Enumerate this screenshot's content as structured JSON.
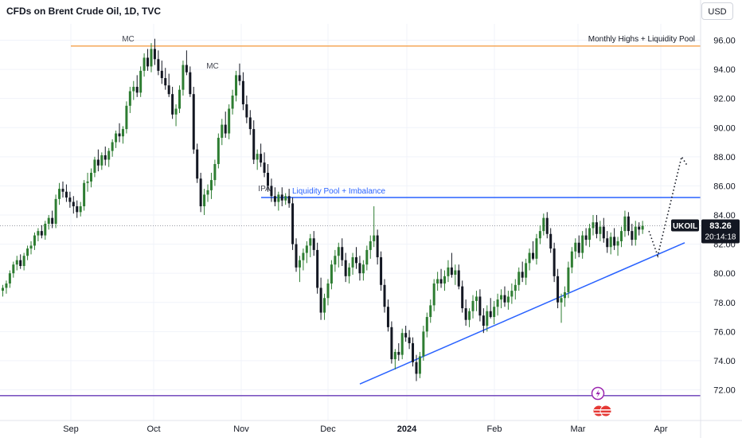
{
  "header": {
    "title": "CFDs on Brent Crude Oil, 1D, TVC",
    "currency_button": "USD"
  },
  "price_tag": {
    "symbol": "UKOIL",
    "price": "83.26",
    "countdown": "20:14:18"
  },
  "colors": {
    "up": "#2e7d32",
    "down": "#131722",
    "orange_line": "#f5a04a",
    "blue_line": "#2962ff",
    "purple_line": "#673ab7",
    "trendline": "#2962ff"
  },
  "chart_data": {
    "type": "candlestick",
    "instrument": "CFDs on Brent Crude Oil",
    "interval": "1D",
    "source": "TVC",
    "currency": "USD",
    "ylim": [
      71.2,
      97.6
    ],
    "y_ticks": [
      "96.00",
      "94.00",
      "92.00",
      "90.00",
      "88.00",
      "86.00",
      "84.00",
      "82.00",
      "80.00",
      "78.00",
      "76.00",
      "74.00",
      "72.00"
    ],
    "x_ticks": [
      {
        "label": "Sep",
        "bold": false
      },
      {
        "label": "Oct",
        "bold": false
      },
      {
        "label": "Nov",
        "bold": false
      },
      {
        "label": "Dec",
        "bold": false
      },
      {
        "label": "2024",
        "bold": true
      },
      {
        "label": "Feb",
        "bold": false
      },
      {
        "label": "Mar",
        "bold": false
      },
      {
        "label": "Apr",
        "bold": false
      }
    ],
    "last_price": 83.26,
    "horizontal_lines": [
      {
        "label": "Monthly Highs + Liquidity Pool",
        "y": 95.6,
        "color": "#f5a04a"
      },
      {
        "label": "Liquidity Pool + Imbalance",
        "y": 85.2,
        "color": "#2962ff"
      },
      {
        "label": "",
        "y": 71.6,
        "color": "#673ab7"
      }
    ],
    "annotations": [
      {
        "text": "MC",
        "near": "September high"
      },
      {
        "text": "MC",
        "near": "October high"
      },
      {
        "text": "IPA",
        "near": "start of November"
      }
    ],
    "trendline": {
      "from": {
        "date": "mid-December",
        "y": 72.4
      },
      "to": {
        "date": "early April",
        "y": 82.1
      }
    },
    "projection": {
      "style": "dotted",
      "points": [
        82.9,
        81.2,
        88.0
      ]
    },
    "candles": [
      [
        78.8,
        79.2,
        78.4,
        79.0
      ],
      [
        79.0,
        79.5,
        78.6,
        79.3
      ],
      [
        79.3,
        80.2,
        79.0,
        80.0
      ],
      [
        80.0,
        80.8,
        79.7,
        80.6
      ],
      [
        80.6,
        81.2,
        80.2,
        80.9
      ],
      [
        80.9,
        81.3,
        80.3,
        80.5
      ],
      [
        80.5,
        81.4,
        80.2,
        81.2
      ],
      [
        81.2,
        81.9,
        80.9,
        81.7
      ],
      [
        81.7,
        82.2,
        81.3,
        81.9
      ],
      [
        81.9,
        82.8,
        81.6,
        82.6
      ],
      [
        82.6,
        83.1,
        82.2,
        82.9
      ],
      [
        82.9,
        83.3,
        82.4,
        82.6
      ],
      [
        82.6,
        83.6,
        82.3,
        83.4
      ],
      [
        83.4,
        84.0,
        83.0,
        83.8
      ],
      [
        83.8,
        84.3,
        83.1,
        83.4
      ],
      [
        83.4,
        85.4,
        83.1,
        85.1
      ],
      [
        85.1,
        86.2,
        84.7,
        85.8
      ],
      [
        85.8,
        86.3,
        85.2,
        85.6
      ],
      [
        85.6,
        86.1,
        84.9,
        85.2
      ],
      [
        85.2,
        85.6,
        84.5,
        84.9
      ],
      [
        84.9,
        85.3,
        84.1,
        84.6
      ],
      [
        84.6,
        85.0,
        83.8,
        84.2
      ],
      [
        84.2,
        84.9,
        83.9,
        84.6
      ],
      [
        84.6,
        86.4,
        84.3,
        86.2
      ],
      [
        86.2,
        86.9,
        85.6,
        86.3
      ],
      [
        86.3,
        87.2,
        85.9,
        86.9
      ],
      [
        86.9,
        88.0,
        86.6,
        87.8
      ],
      [
        87.8,
        88.5,
        87.0,
        87.4
      ],
      [
        87.4,
        88.3,
        87.1,
        88.1
      ],
      [
        88.1,
        88.7,
        87.4,
        87.8
      ],
      [
        87.8,
        88.6,
        87.3,
        88.4
      ],
      [
        88.4,
        89.2,
        88.0,
        89.0
      ],
      [
        89.0,
        89.8,
        88.6,
        89.6
      ],
      [
        89.6,
        90.3,
        89.0,
        89.4
      ],
      [
        89.4,
        90.1,
        88.9,
        89.9
      ],
      [
        89.9,
        91.8,
        89.6,
        91.5
      ],
      [
        91.5,
        92.8,
        91.0,
        92.5
      ],
      [
        92.5,
        93.2,
        91.9,
        92.8
      ],
      [
        92.8,
        93.6,
        92.1,
        92.4
      ],
      [
        92.4,
        94.2,
        92.1,
        93.9
      ],
      [
        93.9,
        95.1,
        93.5,
        94.8
      ],
      [
        94.8,
        95.4,
        93.9,
        94.2
      ],
      [
        94.2,
        95.8,
        93.8,
        95.4
      ],
      [
        95.4,
        96.1,
        94.3,
        94.7
      ],
      [
        94.7,
        95.3,
        93.6,
        93.9
      ],
      [
        93.9,
        94.6,
        93.0,
        93.4
      ],
      [
        93.4,
        94.1,
        92.6,
        92.9
      ],
      [
        92.9,
        93.7,
        92.1,
        92.3
      ],
      [
        92.3,
        92.8,
        90.6,
        90.9
      ],
      [
        90.9,
        91.6,
        90.1,
        91.3
      ],
      [
        91.3,
        92.9,
        91.0,
        92.6
      ],
      [
        92.6,
        94.6,
        92.2,
        94.3
      ],
      [
        94.3,
        95.3,
        93.6,
        93.8
      ],
      [
        93.8,
        94.2,
        92.1,
        92.3
      ],
      [
        92.3,
        92.8,
        88.2,
        88.5
      ],
      [
        88.5,
        88.9,
        86.2,
        86.5
      ],
      [
        86.5,
        86.9,
        84.2,
        84.6
      ],
      [
        84.6,
        85.8,
        84.0,
        85.4
      ],
      [
        85.4,
        86.1,
        84.9,
        85.7
      ],
      [
        85.7,
        86.9,
        85.1,
        86.4
      ],
      [
        86.4,
        87.8,
        86.0,
        87.5
      ],
      [
        87.5,
        89.6,
        87.2,
        89.3
      ],
      [
        89.3,
        90.6,
        88.8,
        90.2
      ],
      [
        90.2,
        91.1,
        89.3,
        89.6
      ],
      [
        89.6,
        91.6,
        89.2,
        91.3
      ],
      [
        91.3,
        92.6,
        90.9,
        92.2
      ],
      [
        92.2,
        93.9,
        91.8,
        93.6
      ],
      [
        93.6,
        94.4,
        92.9,
        93.2
      ],
      [
        93.2,
        93.8,
        91.2,
        91.6
      ],
      [
        91.6,
        92.2,
        90.3,
        90.7
      ],
      [
        90.7,
        91.2,
        89.5,
        89.9
      ],
      [
        89.9,
        90.5,
        87.5,
        87.8
      ],
      [
        87.8,
        88.5,
        87.1,
        88.2
      ],
      [
        88.2,
        88.9,
        87.3,
        87.6
      ],
      [
        87.6,
        88.3,
        86.6,
        86.9
      ],
      [
        86.9,
        87.5,
        85.6,
        86.0
      ],
      [
        86.0,
        86.5,
        84.9,
        85.3
      ],
      [
        85.3,
        85.9,
        84.6,
        84.9
      ],
      [
        84.9,
        85.6,
        84.3,
        85.4
      ],
      [
        85.4,
        85.9,
        84.6,
        85.0
      ],
      [
        85.0,
        85.5,
        84.7,
        85.3
      ],
      [
        85.3,
        85.8,
        84.5,
        84.8
      ],
      [
        84.8,
        85.2,
        81.6,
        82.0
      ],
      [
        82.0,
        82.4,
        80.1,
        80.4
      ],
      [
        80.4,
        81.2,
        79.4,
        80.9
      ],
      [
        80.9,
        81.7,
        80.2,
        81.4
      ],
      [
        81.4,
        82.2,
        80.7,
        81.9
      ],
      [
        81.9,
        82.7,
        81.1,
        82.4
      ],
      [
        82.4,
        82.9,
        81.2,
        81.6
      ],
      [
        81.6,
        82.1,
        78.6,
        79.0
      ],
      [
        79.0,
        79.7,
        76.8,
        77.3
      ],
      [
        77.3,
        78.6,
        76.8,
        78.3
      ],
      [
        78.3,
        79.6,
        77.8,
        79.3
      ],
      [
        79.3,
        80.9,
        78.9,
        80.6
      ],
      [
        80.6,
        81.6,
        80.1,
        81.2
      ],
      [
        81.2,
        82.1,
        80.4,
        81.8
      ],
      [
        81.8,
        82.4,
        80.5,
        80.9
      ],
      [
        80.9,
        81.4,
        79.4,
        79.8
      ],
      [
        79.8,
        80.7,
        79.3,
        80.4
      ],
      [
        80.4,
        81.4,
        79.9,
        81.1
      ],
      [
        81.1,
        81.8,
        80.3,
        80.7
      ],
      [
        80.7,
        81.2,
        79.5,
        80.0
      ],
      [
        80.0,
        80.9,
        79.5,
        80.6
      ],
      [
        80.6,
        81.9,
        80.2,
        81.6
      ],
      [
        81.6,
        82.6,
        81.0,
        82.2
      ],
      [
        82.2,
        84.6,
        81.8,
        82.6
      ],
      [
        82.6,
        83.0,
        80.6,
        81.1
      ],
      [
        81.1,
        81.5,
        78.8,
        79.2
      ],
      [
        79.2,
        79.6,
        77.3,
        77.7
      ],
      [
        77.7,
        78.2,
        76.0,
        76.3
      ],
      [
        76.3,
        76.7,
        73.8,
        74.1
      ],
      [
        74.1,
        74.8,
        73.4,
        74.6
      ],
      [
        74.6,
        75.2,
        74.0,
        74.4
      ],
      [
        74.4,
        76.2,
        74.1,
        75.9
      ],
      [
        75.9,
        76.4,
        75.3,
        75.6
      ],
      [
        75.6,
        76.1,
        74.8,
        75.2
      ],
      [
        75.2,
        75.6,
        73.6,
        73.9
      ],
      [
        73.9,
        74.4,
        72.6,
        73.1
      ],
      [
        73.1,
        74.6,
        72.8,
        74.3
      ],
      [
        74.3,
        76.4,
        74.0,
        76.0
      ],
      [
        76.0,
        77.3,
        75.6,
        77.0
      ],
      [
        77.0,
        78.2,
        76.6,
        77.8
      ],
      [
        77.8,
        79.6,
        77.4,
        79.3
      ],
      [
        79.3,
        80.1,
        78.8,
        79.6
      ],
      [
        79.6,
        80.3,
        79.0,
        79.3
      ],
      [
        79.3,
        80.2,
        78.8,
        79.8
      ],
      [
        79.8,
        80.9,
        79.4,
        80.4
      ],
      [
        80.4,
        81.4,
        79.7,
        79.9
      ],
      [
        79.9,
        80.6,
        79.2,
        80.2
      ],
      [
        80.2,
        80.6,
        78.9,
        79.1
      ],
      [
        79.1,
        79.5,
        77.3,
        77.6
      ],
      [
        77.6,
        78.2,
        76.4,
        76.8
      ],
      [
        76.8,
        77.6,
        76.3,
        77.4
      ],
      [
        77.4,
        78.5,
        76.9,
        78.1
      ],
      [
        78.1,
        78.8,
        77.4,
        78.4
      ],
      [
        78.4,
        78.9,
        76.7,
        77.1
      ],
      [
        77.1,
        77.6,
        75.9,
        76.4
      ],
      [
        76.4,
        77.8,
        76.0,
        77.4
      ],
      [
        77.4,
        78.3,
        76.9,
        77.0
      ],
      [
        77.0,
        78.1,
        76.5,
        77.7
      ],
      [
        77.7,
        78.6,
        77.1,
        78.2
      ],
      [
        78.2,
        78.9,
        77.6,
        78.5
      ],
      [
        78.5,
        79.1,
        77.7,
        78.0
      ],
      [
        78.0,
        78.8,
        77.5,
        78.4
      ],
      [
        78.4,
        79.3,
        77.9,
        78.8
      ],
      [
        78.8,
        79.6,
        78.2,
        79.2
      ],
      [
        79.2,
        80.4,
        78.8,
        80.1
      ],
      [
        80.1,
        80.8,
        79.4,
        79.7
      ],
      [
        79.7,
        81.0,
        79.2,
        80.7
      ],
      [
        80.7,
        81.7,
        80.2,
        81.4
      ],
      [
        81.4,
        82.2,
        80.9,
        81.0
      ],
      [
        81.0,
        82.7,
        80.6,
        82.4
      ],
      [
        82.4,
        83.3,
        82.0,
        82.9
      ],
      [
        82.9,
        84.1,
        82.6,
        83.8
      ],
      [
        83.8,
        84.2,
        82.4,
        82.7
      ],
      [
        82.7,
        83.1,
        81.4,
        81.7
      ],
      [
        81.7,
        82.1,
        79.4,
        79.8
      ],
      [
        79.8,
        80.3,
        77.6,
        78.0
      ],
      [
        78.0,
        78.6,
        76.6,
        78.3
      ],
      [
        78.3,
        79.1,
        77.7,
        78.7
      ],
      [
        78.7,
        80.8,
        78.3,
        80.4
      ],
      [
        80.4,
        81.8,
        80.0,
        81.5
      ],
      [
        81.5,
        82.4,
        81.0,
        82.1
      ],
      [
        82.1,
        82.6,
        81.1,
        81.4
      ],
      [
        81.4,
        82.9,
        81.0,
        82.6
      ],
      [
        82.6,
        83.1,
        81.9,
        82.3
      ],
      [
        82.3,
        83.4,
        81.8,
        83.1
      ],
      [
        83.1,
        84.0,
        82.6,
        83.5
      ],
      [
        83.5,
        84.0,
        82.4,
        82.7
      ],
      [
        82.7,
        83.6,
        82.2,
        83.2
      ],
      [
        83.2,
        83.8,
        82.1,
        82.4
      ],
      [
        82.4,
        82.9,
        81.4,
        81.8
      ],
      [
        81.8,
        82.8,
        81.3,
        82.5
      ],
      [
        82.5,
        83.1,
        81.6,
        81.9
      ],
      [
        81.9,
        82.5,
        81.2,
        82.2
      ],
      [
        82.2,
        83.2,
        81.8,
        82.9
      ],
      [
        82.9,
        84.3,
        82.5,
        83.9
      ],
      [
        83.9,
        84.2,
        82.6,
        82.9
      ],
      [
        82.9,
        83.4,
        81.9,
        82.3
      ],
      [
        82.3,
        83.6,
        81.9,
        83.2
      ],
      [
        83.2,
        83.5,
        82.6,
        83.0
      ],
      [
        83.0,
        83.6,
        82.7,
        83.26
      ]
    ]
  }
}
